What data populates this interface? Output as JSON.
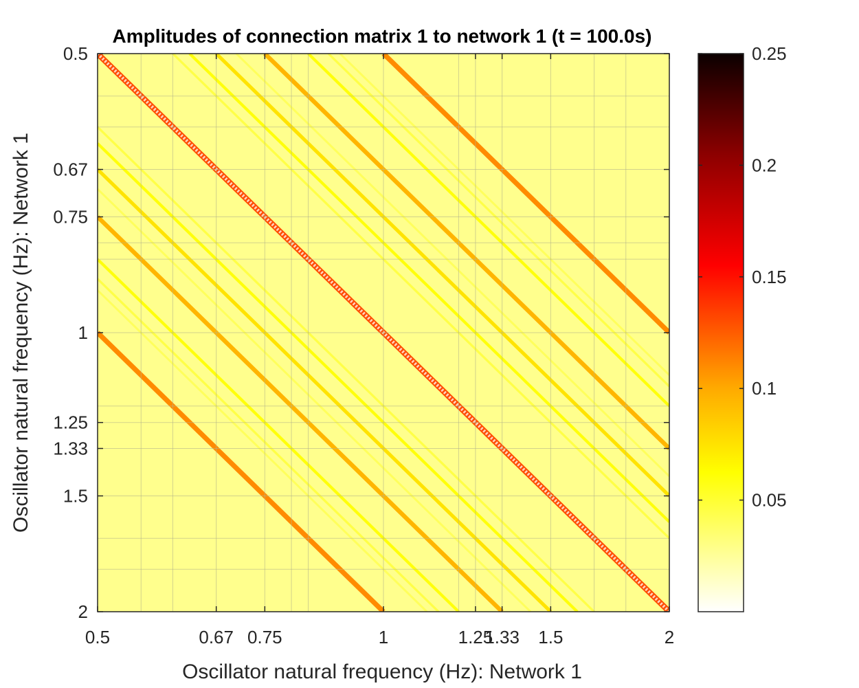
{
  "chart_data": {
    "type": "heatmap",
    "title": "Amplitudes of connection matrix 1 to network 1 (t = 100.0s)",
    "xlabel": "Oscillator natural frequency (Hz): Network 1",
    "ylabel": "Oscillator natural frequency (Hz): Network 1",
    "scale": "log",
    "xlim": [
      0.5,
      2
    ],
    "ylim": [
      0.5,
      2
    ],
    "y_direction": "reverse",
    "x_ticks": [
      {
        "value": 0.5,
        "label": "0.5"
      },
      {
        "value": 0.6667,
        "label": "0.67"
      },
      {
        "value": 0.75,
        "label": "0.75"
      },
      {
        "value": 1,
        "label": "1"
      },
      {
        "value": 1.25,
        "label": "1.25"
      },
      {
        "value": 1.3333,
        "label": "1.33"
      },
      {
        "value": 1.5,
        "label": "1.5"
      },
      {
        "value": 2,
        "label": "2"
      }
    ],
    "y_ticks": [
      {
        "value": 0.5,
        "label": "0.5"
      },
      {
        "value": 0.6667,
        "label": "0.67"
      },
      {
        "value": 0.75,
        "label": "0.75"
      },
      {
        "value": 1,
        "label": "1"
      },
      {
        "value": 1.25,
        "label": "1.25"
      },
      {
        "value": 1.3333,
        "label": "1.33"
      },
      {
        "value": 1.5,
        "label": "1.5"
      },
      {
        "value": 2,
        "label": "2"
      }
    ],
    "minor_grid_ratios": [
      0.5556,
      0.6,
      0.8,
      0.8333,
      1.2,
      1.6667,
      1.8
    ],
    "grid": true,
    "colormap": "hot (reversed)",
    "colorbar": {
      "lim": [
        0,
        0.25
      ],
      "ticks": [
        {
          "value": 0.05,
          "label": "0.05"
        },
        {
          "value": 0.1,
          "label": "0.1"
        },
        {
          "value": 0.15,
          "label": "0.15"
        },
        {
          "value": 0.2,
          "label": "0.2"
        },
        {
          "value": 0.25,
          "label": "0.25"
        }
      ]
    },
    "background_value": 0.028,
    "diagonal_bands": [
      {
        "ratio": 1,
        "value": 0.13,
        "style": "checker"
      },
      {
        "ratio": 2,
        "value": 0.11
      },
      {
        "ratio": 0.5,
        "value": 0.11
      },
      {
        "ratio": 1.5,
        "value": 0.095
      },
      {
        "ratio": 0.6667,
        "value": 0.095
      },
      {
        "ratio": 1.3333,
        "value": 0.075
      },
      {
        "ratio": 0.75,
        "value": 0.075
      },
      {
        "ratio": 1.25,
        "value": 0.06
      },
      {
        "ratio": 0.8,
        "value": 0.06
      },
      {
        "ratio": 1.6667,
        "value": 0.06
      },
      {
        "ratio": 0.6,
        "value": 0.06
      },
      {
        "ratio": 1.2,
        "value": 0.045
      },
      {
        "ratio": 0.8333,
        "value": 0.045
      },
      {
        "ratio": 1.75,
        "value": 0.045
      },
      {
        "ratio": 0.5714,
        "value": 0.045
      },
      {
        "ratio": 1.4,
        "value": 0.04
      },
      {
        "ratio": 0.7143,
        "value": 0.04
      },
      {
        "ratio": 1.8,
        "value": 0.04
      },
      {
        "ratio": 0.5556,
        "value": 0.04
      }
    ]
  }
}
